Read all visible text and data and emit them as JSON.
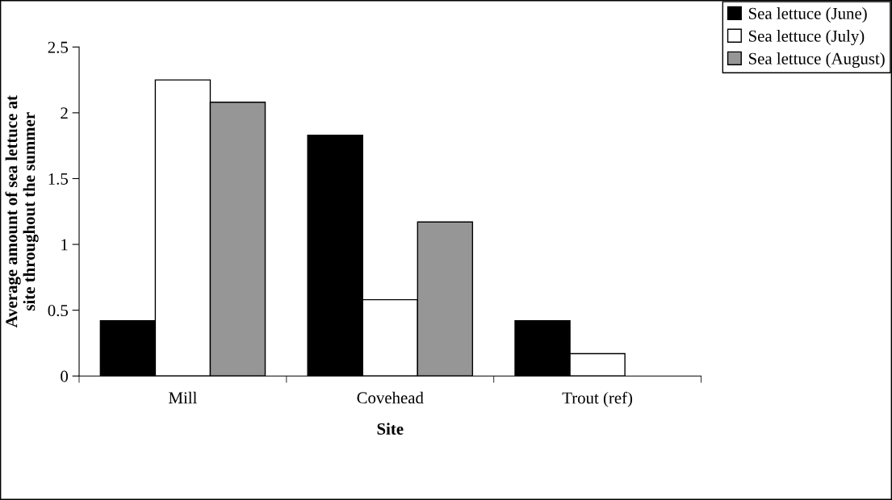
{
  "chart_data": {
    "type": "bar",
    "xlabel": "Site",
    "ylabel": "Average amount of sea lettuce at\nsite throughout the summer",
    "categories": [
      "Mill",
      "Covehead",
      "Trout (ref)"
    ],
    "series": [
      {
        "name": "Sea lettuce (June)",
        "color": "#000000",
        "values": [
          0.42,
          1.83,
          0.42
        ]
      },
      {
        "name": "Sea lettuce (July)",
        "color": "#ffffff",
        "values": [
          2.25,
          0.58,
          0.17
        ]
      },
      {
        "name": "Sea lettuce (August)",
        "color": "#969696",
        "values": [
          2.08,
          1.17,
          null
        ]
      }
    ],
    "ylim": [
      0,
      2.5
    ],
    "yticks": [
      0,
      0.5,
      1,
      1.5,
      2,
      2.5
    ],
    "grid": false,
    "legend": "top right"
  }
}
